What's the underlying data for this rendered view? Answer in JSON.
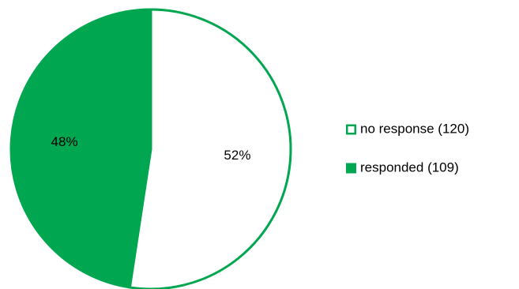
{
  "chart_data": {
    "type": "pie",
    "slices": [
      {
        "name": "no response (120)",
        "value": 120,
        "percent_label": "52%",
        "fill": "#ffffff",
        "stroke": "#00A650"
      },
      {
        "name": "responded (109)",
        "value": 109,
        "percent_label": "48%",
        "fill": "#00A650",
        "stroke": "#00A650"
      }
    ],
    "start_angle_deg": 0,
    "direction": "clockwise",
    "legend_position": "right",
    "colors": {
      "accent": "#00A650",
      "background": "#ffffff",
      "text": "#000000"
    }
  }
}
